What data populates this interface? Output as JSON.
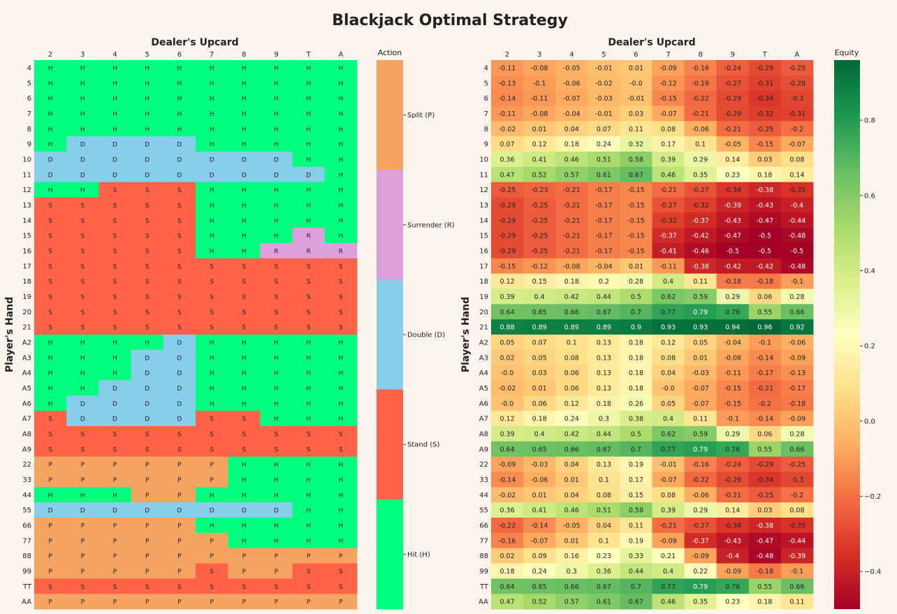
{
  "title": "Blackjack Optimal Strategy",
  "chart_data": [
    {
      "type": "heatmap",
      "title": "",
      "xlabel": "Dealer's Upcard",
      "ylabel": "Player's Hand",
      "x_categories": [
        "2",
        "3",
        "4",
        "5",
        "6",
        "7",
        "8",
        "9",
        "T",
        "A"
      ],
      "y_categories": [
        "4",
        "5",
        "6",
        "7",
        "8",
        "9",
        "10",
        "11",
        "12",
        "13",
        "14",
        "15",
        "16",
        "17",
        "18",
        "19",
        "20",
        "21",
        "A2",
        "A3",
        "A4",
        "A5",
        "A6",
        "A7",
        "A8",
        "A9",
        "22",
        "33",
        "44",
        "55",
        "66",
        "77",
        "88",
        "99",
        "TT",
        "AA"
      ],
      "values": [
        [
          "H",
          "H",
          "H",
          "H",
          "H",
          "H",
          "H",
          "H",
          "H",
          "H"
        ],
        [
          "H",
          "H",
          "H",
          "H",
          "H",
          "H",
          "H",
          "H",
          "H",
          "H"
        ],
        [
          "H",
          "H",
          "H",
          "H",
          "H",
          "H",
          "H",
          "H",
          "H",
          "H"
        ],
        [
          "H",
          "H",
          "H",
          "H",
          "H",
          "H",
          "H",
          "H",
          "H",
          "H"
        ],
        [
          "H",
          "H",
          "H",
          "H",
          "H",
          "H",
          "H",
          "H",
          "H",
          "H"
        ],
        [
          "H",
          "D",
          "D",
          "D",
          "D",
          "H",
          "H",
          "H",
          "H",
          "H"
        ],
        [
          "D",
          "D",
          "D",
          "D",
          "D",
          "D",
          "D",
          "D",
          "H",
          "H"
        ],
        [
          "D",
          "D",
          "D",
          "D",
          "D",
          "D",
          "D",
          "D",
          "D",
          "H"
        ],
        [
          "H",
          "H",
          "S",
          "S",
          "S",
          "H",
          "H",
          "H",
          "H",
          "H"
        ],
        [
          "S",
          "S",
          "S",
          "S",
          "S",
          "H",
          "H",
          "H",
          "H",
          "H"
        ],
        [
          "S",
          "S",
          "S",
          "S",
          "S",
          "H",
          "H",
          "H",
          "H",
          "H"
        ],
        [
          "S",
          "S",
          "S",
          "S",
          "S",
          "H",
          "H",
          "H",
          "R",
          "H"
        ],
        [
          "S",
          "S",
          "S",
          "S",
          "S",
          "H",
          "H",
          "R",
          "R",
          "R"
        ],
        [
          "S",
          "S",
          "S",
          "S",
          "S",
          "S",
          "S",
          "S",
          "S",
          "S"
        ],
        [
          "S",
          "S",
          "S",
          "S",
          "S",
          "S",
          "S",
          "S",
          "S",
          "S"
        ],
        [
          "S",
          "S",
          "S",
          "S",
          "S",
          "S",
          "S",
          "S",
          "S",
          "S"
        ],
        [
          "S",
          "S",
          "S",
          "S",
          "S",
          "S",
          "S",
          "S",
          "S",
          "S"
        ],
        [
          "S",
          "S",
          "S",
          "S",
          "S",
          "S",
          "S",
          "S",
          "S",
          "S"
        ],
        [
          "H",
          "H",
          "H",
          "H",
          "D",
          "H",
          "H",
          "H",
          "H",
          "H"
        ],
        [
          "H",
          "H",
          "H",
          "D",
          "D",
          "H",
          "H",
          "H",
          "H",
          "H"
        ],
        [
          "H",
          "H",
          "H",
          "D",
          "D",
          "H",
          "H",
          "H",
          "H",
          "H"
        ],
        [
          "H",
          "H",
          "D",
          "D",
          "D",
          "H",
          "H",
          "H",
          "H",
          "H"
        ],
        [
          "H",
          "D",
          "D",
          "D",
          "D",
          "H",
          "H",
          "H",
          "H",
          "H"
        ],
        [
          "S",
          "D",
          "D",
          "D",
          "D",
          "S",
          "S",
          "H",
          "H",
          "H"
        ],
        [
          "S",
          "S",
          "S",
          "S",
          "S",
          "S",
          "S",
          "S",
          "S",
          "S"
        ],
        [
          "S",
          "S",
          "S",
          "S",
          "S",
          "S",
          "S",
          "S",
          "S",
          "S"
        ],
        [
          "P",
          "P",
          "P",
          "P",
          "P",
          "P",
          "H",
          "H",
          "H",
          "H"
        ],
        [
          "P",
          "P",
          "P",
          "P",
          "P",
          "P",
          "H",
          "H",
          "H",
          "H"
        ],
        [
          "H",
          "H",
          "H",
          "P",
          "P",
          "H",
          "H",
          "H",
          "H",
          "H"
        ],
        [
          "D",
          "D",
          "D",
          "D",
          "D",
          "D",
          "D",
          "D",
          "H",
          "H"
        ],
        [
          "P",
          "P",
          "P",
          "P",
          "P",
          "H",
          "H",
          "H",
          "H",
          "H"
        ],
        [
          "P",
          "P",
          "P",
          "P",
          "P",
          "P",
          "H",
          "H",
          "H",
          "H"
        ],
        [
          "P",
          "P",
          "P",
          "P",
          "P",
          "P",
          "P",
          "P",
          "P",
          "P"
        ],
        [
          "P",
          "P",
          "P",
          "P",
          "P",
          "S",
          "P",
          "P",
          "S",
          "S"
        ],
        [
          "S",
          "S",
          "S",
          "S",
          "S",
          "S",
          "S",
          "S",
          "S",
          "S"
        ],
        [
          "P",
          "P",
          "P",
          "P",
          "P",
          "P",
          "P",
          "P",
          "P",
          "P"
        ]
      ],
      "legend": {
        "title": "Action",
        "entries": [
          {
            "code": "P",
            "label": "Split (P)",
            "color": "#f4a460"
          },
          {
            "code": "R",
            "label": "Surrender (R)",
            "color": "#dda0dd"
          },
          {
            "code": "D",
            "label": "Double (D)",
            "color": "#87ceeb"
          },
          {
            "code": "S",
            "label": "Stand (S)",
            "color": "#ff6347"
          },
          {
            "code": "H",
            "label": "Hit (H)",
            "color": "#00ff7f"
          }
        ]
      }
    },
    {
      "type": "heatmap",
      "title": "",
      "xlabel": "Dealer's Upcard",
      "ylabel": "Player's Hand",
      "x_categories": [
        "2",
        "3",
        "4",
        "5",
        "6",
        "7",
        "8",
        "9",
        "T",
        "A"
      ],
      "y_categories": [
        "4",
        "5",
        "6",
        "7",
        "8",
        "9",
        "10",
        "11",
        "12",
        "13",
        "14",
        "15",
        "16",
        "17",
        "18",
        "19",
        "20",
        "21",
        "A2",
        "A3",
        "A4",
        "A5",
        "A6",
        "A7",
        "A8",
        "A9",
        "22",
        "33",
        "44",
        "55",
        "66",
        "77",
        "88",
        "99",
        "TT",
        "AA"
      ],
      "values": [
        [
          "-0.11",
          "-0.08",
          "-0.05",
          "-0.01",
          "0.01",
          "-0.09",
          "-0.16",
          "-0.24",
          "-0.29",
          "-0.25"
        ],
        [
          "-0.13",
          "-0.1",
          "-0.06",
          "-0.02",
          "-0.0",
          "-0.12",
          "-0.19",
          "-0.27",
          "-0.31",
          "-0.28"
        ],
        [
          "-0.14",
          "-0.11",
          "-0.07",
          "-0.03",
          "-0.01",
          "-0.15",
          "-0.22",
          "-0.29",
          "-0.34",
          "-0.3"
        ],
        [
          "-0.11",
          "-0.08",
          "-0.04",
          "-0.01",
          "0.03",
          "-0.07",
          "-0.21",
          "-0.29",
          "-0.32",
          "-0.31"
        ],
        [
          "-0.02",
          "0.01",
          "0.04",
          "0.07",
          "0.11",
          "0.08",
          "-0.06",
          "-0.21",
          "-0.25",
          "-0.2"
        ],
        [
          "0.07",
          "0.12",
          "0.18",
          "0.24",
          "0.32",
          "0.17",
          "0.1",
          "-0.05",
          "-0.15",
          "-0.07"
        ],
        [
          "0.36",
          "0.41",
          "0.46",
          "0.51",
          "0.58",
          "0.39",
          "0.29",
          "0.14",
          "0.03",
          "0.08"
        ],
        [
          "0.47",
          "0.52",
          "0.57",
          "0.61",
          "0.67",
          "0.46",
          "0.35",
          "0.23",
          "0.18",
          "0.14"
        ],
        [
          "-0.25",
          "-0.23",
          "-0.21",
          "-0.17",
          "-0.15",
          "-0.21",
          "-0.27",
          "-0.34",
          "-0.38",
          "-0.35"
        ],
        [
          "-0.29",
          "-0.25",
          "-0.21",
          "-0.17",
          "-0.15",
          "-0.27",
          "-0.32",
          "-0.39",
          "-0.43",
          "-0.4"
        ],
        [
          "-0.29",
          "-0.25",
          "-0.21",
          "-0.17",
          "-0.15",
          "-0.32",
          "-0.37",
          "-0.43",
          "-0.47",
          "-0.44"
        ],
        [
          "-0.29",
          "-0.25",
          "-0.21",
          "-0.17",
          "-0.15",
          "-0.37",
          "-0.42",
          "-0.47",
          "-0.5",
          "-0.48"
        ],
        [
          "-0.29",
          "-0.25",
          "-0.21",
          "-0.17",
          "-0.15",
          "-0.41",
          "-0.46",
          "-0.5",
          "-0.5",
          "-0.5"
        ],
        [
          "-0.15",
          "-0.12",
          "-0.08",
          "-0.04",
          "0.01",
          "-0.11",
          "-0.38",
          "-0.42",
          "-0.42",
          "-0.48"
        ],
        [
          "0.12",
          "0.15",
          "0.18",
          "0.2",
          "0.28",
          "0.4",
          "0.11",
          "-0.18",
          "-0.18",
          "-0.1"
        ],
        [
          "0.39",
          "0.4",
          "0.42",
          "0.44",
          "0.5",
          "0.62",
          "0.59",
          "0.29",
          "0.06",
          "0.28"
        ],
        [
          "0.64",
          "0.65",
          "0.66",
          "0.67",
          "0.7",
          "0.77",
          "0.79",
          "0.76",
          "0.55",
          "0.66"
        ],
        [
          "0.88",
          "0.89",
          "0.89",
          "0.89",
          "0.9",
          "0.93",
          "0.93",
          "0.94",
          "0.96",
          "0.92"
        ],
        [
          "0.05",
          "0.07",
          "0.1",
          "0.13",
          "0.18",
          "0.12",
          "0.05",
          "-0.04",
          "-0.1",
          "-0.06"
        ],
        [
          "0.02",
          "0.05",
          "0.08",
          "0.13",
          "0.18",
          "0.08",
          "0.01",
          "-0.08",
          "-0.14",
          "-0.09"
        ],
        [
          "-0.0",
          "0.03",
          "0.06",
          "0.13",
          "0.18",
          "0.04",
          "-0.03",
          "-0.11",
          "-0.17",
          "-0.13"
        ],
        [
          "-0.02",
          "0.01",
          "0.06",
          "0.13",
          "0.18",
          "-0.0",
          "-0.07",
          "-0.15",
          "-0.21",
          "-0.17"
        ],
        [
          "-0.0",
          "0.06",
          "0.12",
          "0.18",
          "0.26",
          "0.05",
          "-0.07",
          "-0.15",
          "-0.2",
          "-0.18"
        ],
        [
          "0.12",
          "0.18",
          "0.24",
          "0.3",
          "0.38",
          "0.4",
          "0.11",
          "-0.1",
          "-0.14",
          "-0.09"
        ],
        [
          "0.39",
          "0.4",
          "0.42",
          "0.44",
          "0.5",
          "0.62",
          "0.59",
          "0.29",
          "0.06",
          "0.28"
        ],
        [
          "0.64",
          "0.65",
          "0.66",
          "0.67",
          "0.7",
          "0.77",
          "0.79",
          "0.76",
          "0.55",
          "0.66"
        ],
        [
          "-0.09",
          "-0.03",
          "0.04",
          "0.13",
          "0.19",
          "-0.01",
          "-0.16",
          "-0.24",
          "-0.29",
          "-0.25"
        ],
        [
          "-0.14",
          "-0.06",
          "0.01",
          "0.1",
          "0.17",
          "-0.07",
          "-0.22",
          "-0.29",
          "-0.34",
          "-0.3"
        ],
        [
          "-0.02",
          "0.01",
          "0.04",
          "0.08",
          "0.15",
          "0.08",
          "-0.06",
          "-0.21",
          "-0.25",
          "-0.2"
        ],
        [
          "0.36",
          "0.41",
          "0.46",
          "0.51",
          "0.58",
          "0.39",
          "0.29",
          "0.14",
          "0.03",
          "0.08"
        ],
        [
          "-0.22",
          "-0.14",
          "-0.05",
          "0.04",
          "0.11",
          "-0.21",
          "-0.27",
          "-0.34",
          "-0.38",
          "-0.35"
        ],
        [
          "-0.16",
          "-0.07",
          "0.01",
          "0.1",
          "0.19",
          "-0.09",
          "-0.37",
          "-0.43",
          "-0.47",
          "-0.44"
        ],
        [
          "0.02",
          "0.09",
          "0.16",
          "0.23",
          "0.33",
          "0.21",
          "-0.09",
          "-0.4",
          "-0.48",
          "-0.39"
        ],
        [
          "0.18",
          "0.24",
          "0.3",
          "0.36",
          "0.44",
          "0.4",
          "0.22",
          "-0.09",
          "-0.18",
          "-0.1"
        ],
        [
          "0.64",
          "0.65",
          "0.66",
          "0.67",
          "0.7",
          "0.77",
          "0.79",
          "0.76",
          "0.55",
          "0.66"
        ],
        [
          "0.47",
          "0.52",
          "0.57",
          "0.61",
          "0.67",
          "0.46",
          "0.35",
          "0.23",
          "0.18",
          "0.11"
        ]
      ],
      "colorbar": {
        "title": "Equity",
        "range": [
          -0.5,
          0.96
        ],
        "ticks": [
          "0.8",
          "0.6",
          "0.4",
          "0.2",
          "0.0",
          "−0.2",
          "−0.4"
        ],
        "colormap": "RdYlGn"
      }
    }
  ]
}
